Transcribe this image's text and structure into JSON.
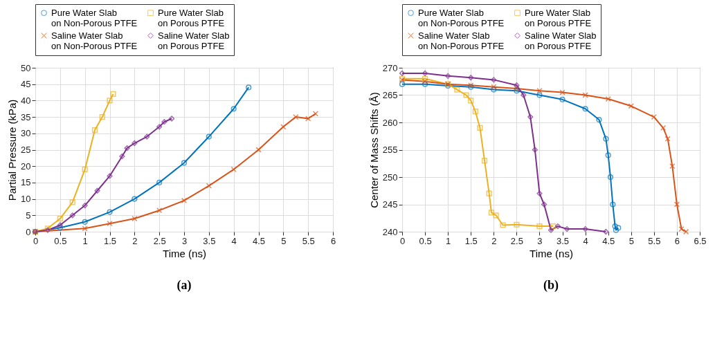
{
  "chart_data": [
    {
      "type": "line",
      "xlabel": "Time (ns)",
      "ylabel": "Partial Pressure (kPa)",
      "annotations": [
        "(a)"
      ],
      "xlim": [
        0,
        6
      ],
      "xticks": [
        0,
        0.5,
        1,
        1.5,
        2,
        2.5,
        3,
        3.5,
        4,
        4.5,
        5,
        5.5,
        6
      ],
      "ylim": [
        0,
        50
      ],
      "yticks": [
        0,
        5,
        10,
        15,
        20,
        25,
        30,
        35,
        40,
        45,
        50
      ],
      "grid": true,
      "legend": "top",
      "line_style": "solid",
      "series": [
        {
          "name": "Pure Water Slab\non Non-Porous PTFE",
          "color": "#0072bd",
          "marker": "circle",
          "x": [
            0,
            0.5,
            1,
            1.5,
            2,
            2.5,
            3,
            3.5,
            4,
            4.3
          ],
          "values": [
            0,
            1.2,
            3,
            6,
            10,
            15,
            21,
            29,
            37.5,
            44
          ]
        },
        {
          "name": "Pure Water Slab\non Porous PTFE",
          "color": "#edb120",
          "marker": "square",
          "x": [
            0,
            0.25,
            0.5,
            0.75,
            1,
            1.2,
            1.35,
            1.5,
            1.57
          ],
          "values": [
            0,
            1,
            4,
            9,
            19,
            31,
            35,
            40,
            42
          ]
        },
        {
          "name": "Saline Water Slab\non Non-Porous PTFE",
          "color": "#d95319",
          "marker": "cross",
          "x": [
            0,
            1,
            1.5,
            2,
            2.5,
            3,
            3.5,
            4,
            4.5,
            5,
            5.25,
            5.5,
            5.65
          ],
          "values": [
            0,
            1,
            2.5,
            4,
            6.5,
            9.5,
            14,
            19,
            25,
            32,
            35,
            34.5,
            36
          ]
        },
        {
          "name": "Saline Water Slab\non Porous PTFE",
          "color": "#7e2f8e",
          "marker": "diamond",
          "x": [
            0,
            0.25,
            0.5,
            0.75,
            1,
            1.25,
            1.5,
            1.75,
            1.85,
            2,
            2.25,
            2.5,
            2.6,
            2.75
          ],
          "values": [
            0,
            0.5,
            2,
            5,
            8,
            12.5,
            17,
            23,
            25.5,
            27,
            29,
            32,
            33.5,
            34.5
          ]
        }
      ]
    },
    {
      "type": "line",
      "xlabel": "Time (ns)",
      "ylabel": "Center of Mass Shifts (Å)",
      "annotations": [
        "(b)"
      ],
      "xlim": [
        0,
        6.5
      ],
      "xticks": [
        0,
        0.5,
        1,
        1.5,
        2,
        2.5,
        3,
        3.5,
        4,
        4.5,
        5,
        5.5,
        6,
        6.5
      ],
      "ylim": [
        240,
        270
      ],
      "yticks": [
        240,
        245,
        250,
        255,
        260,
        265,
        270
      ],
      "grid": true,
      "legend": "top",
      "line_style": "solid",
      "series": [
        {
          "name": "Pure Water Slab\non Non-Porous PTFE",
          "color": "#0072bd",
          "marker": "circle",
          "x": [
            0,
            0.5,
            1,
            1.5,
            2,
            2.5,
            3,
            3.5,
            4,
            4.3,
            4.45,
            4.5,
            4.55,
            4.6,
            4.65,
            4.67,
            4.72
          ],
          "values": [
            267,
            267,
            266.7,
            266.5,
            266,
            265.8,
            265,
            264.2,
            262.5,
            260.5,
            257,
            254,
            250,
            245,
            241,
            240.3,
            240.7
          ]
        },
        {
          "name": "Pure Water Slab\non Porous PTFE",
          "color": "#edb120",
          "marker": "square",
          "x": [
            0,
            0.5,
            1,
            1.2,
            1.4,
            1.5,
            1.6,
            1.7,
            1.8,
            1.9,
            1.95,
            2.05,
            2.2,
            2.5,
            3,
            3.3
          ],
          "values": [
            268,
            268,
            267,
            266,
            265,
            264,
            262,
            259,
            253,
            247,
            243.5,
            243,
            241.2,
            241.3,
            241,
            241
          ]
        },
        {
          "name": "Saline Water Slab\non Non-Porous PTFE",
          "color": "#d95319",
          "marker": "cross",
          "x": [
            0,
            0.5,
            1,
            1.5,
            2,
            2.5,
            3,
            3.5,
            4,
            4.5,
            5,
            5.5,
            5.7,
            5.8,
            5.9,
            6,
            6.1,
            6.2
          ],
          "values": [
            267.8,
            267.5,
            267,
            266.8,
            266.5,
            266.2,
            265.8,
            265.5,
            265,
            264.3,
            263,
            261,
            259,
            257,
            252,
            245,
            240.5,
            240
          ]
        },
        {
          "name": "Saline Water Slab\non Porous PTFE",
          "color": "#7e2f8e",
          "marker": "diamond",
          "x": [
            0,
            0.5,
            1,
            1.5,
            2,
            2.5,
            2.65,
            2.8,
            2.9,
            3,
            3.1,
            3.25,
            3.4,
            3.6,
            4,
            4.45
          ],
          "values": [
            269,
            269,
            268.5,
            268.2,
            267.8,
            266.8,
            265,
            261,
            255,
            247,
            245,
            240.3,
            241,
            240.5,
            240.5,
            240
          ]
        }
      ]
    }
  ]
}
